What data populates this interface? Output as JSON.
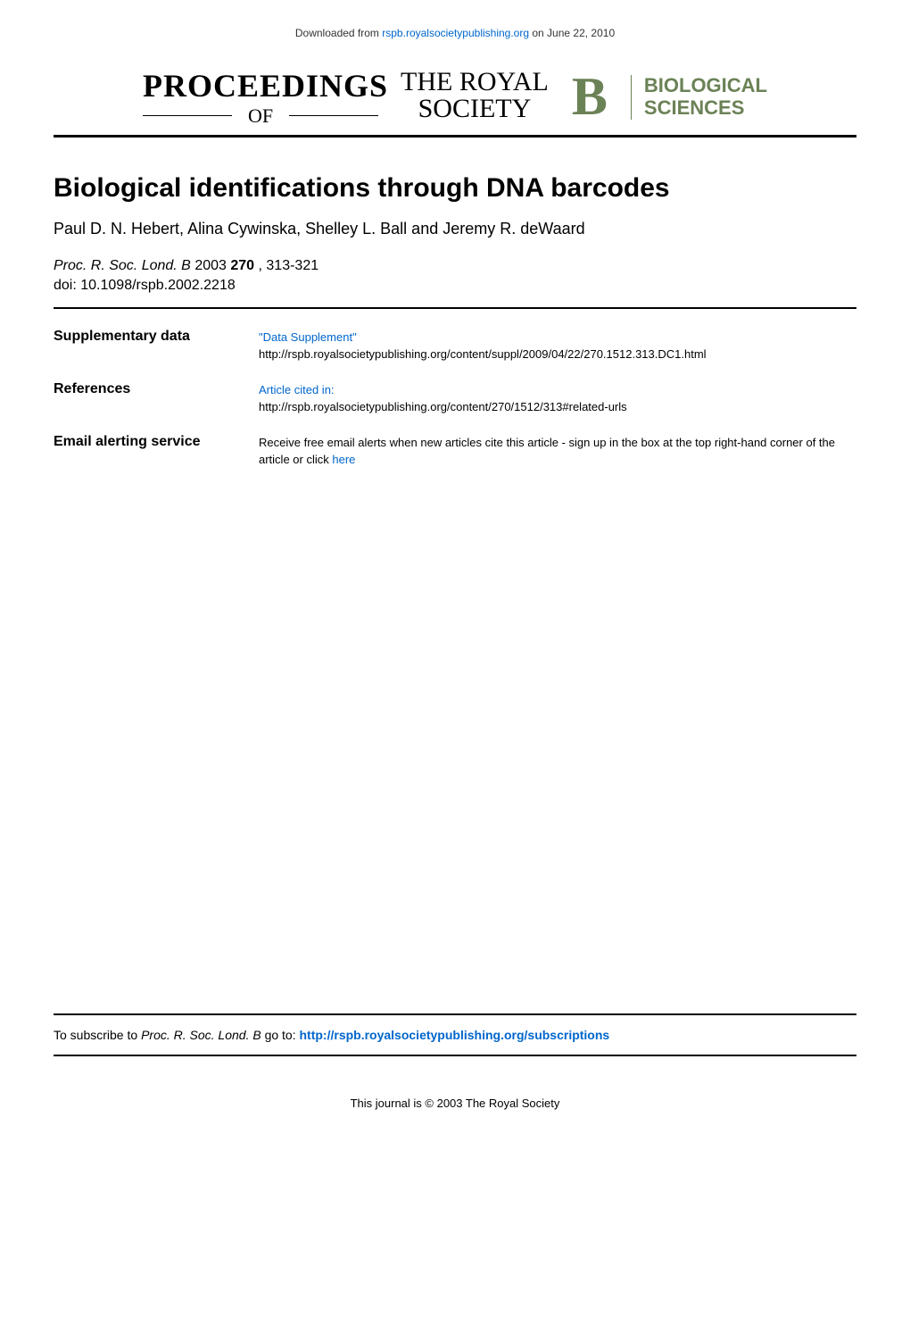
{
  "top": {
    "prefix": "Downloaded from ",
    "link_text": "rspb.royalsocietypublishing.org",
    "suffix": " on June 22, 2010"
  },
  "journal_header": {
    "proceedings": "PROCEEDINGS",
    "of": "OF",
    "the_royal": "THE ROYAL",
    "society": "SOCIETY",
    "b": "B",
    "biological": "BIOLOGICAL",
    "sciences": "SCIENCES",
    "colors": {
      "brand_green": "#6B8256",
      "text_black": "#000000"
    }
  },
  "article": {
    "title": "Biological identifications through DNA barcodes",
    "authors": "Paul D. N. Hebert, Alina Cywinska, Shelley L. Ball and Jeremy R. deWaard",
    "journal_abbrev": "Proc. R. Soc. Lond. B",
    "year": "2003",
    "volume": "270",
    "pages": "313-321",
    "doi_prefix": "doi: ",
    "doi": "10.1098/rspb.2002.2218"
  },
  "info_rows": [
    {
      "label": "Supplementary data",
      "link_text": "\"Data Supplement\"",
      "detail": "http://rspb.royalsocietypublishing.org/content/suppl/2009/04/22/270.1512.313.DC1.html"
    },
    {
      "label": "References",
      "link_text": "Article cited in:",
      "detail": "http://rspb.royalsocietypublishing.org/content/270/1512/313#related-urls"
    },
    {
      "label": "Email alerting service",
      "detail_prefix": "Receive free email alerts when new articles cite this article - sign up in the box at the top right-hand corner of the article or click ",
      "link_text": "here"
    }
  ],
  "subscribe": {
    "prefix": "To subscribe to ",
    "journal": "Proc. R. Soc. Lond. B",
    "mid": " go to: ",
    "link_text": "http://rspb.royalsocietypublishing.org/subscriptions"
  },
  "copyright": "This journal is © 2003 The Royal Society"
}
